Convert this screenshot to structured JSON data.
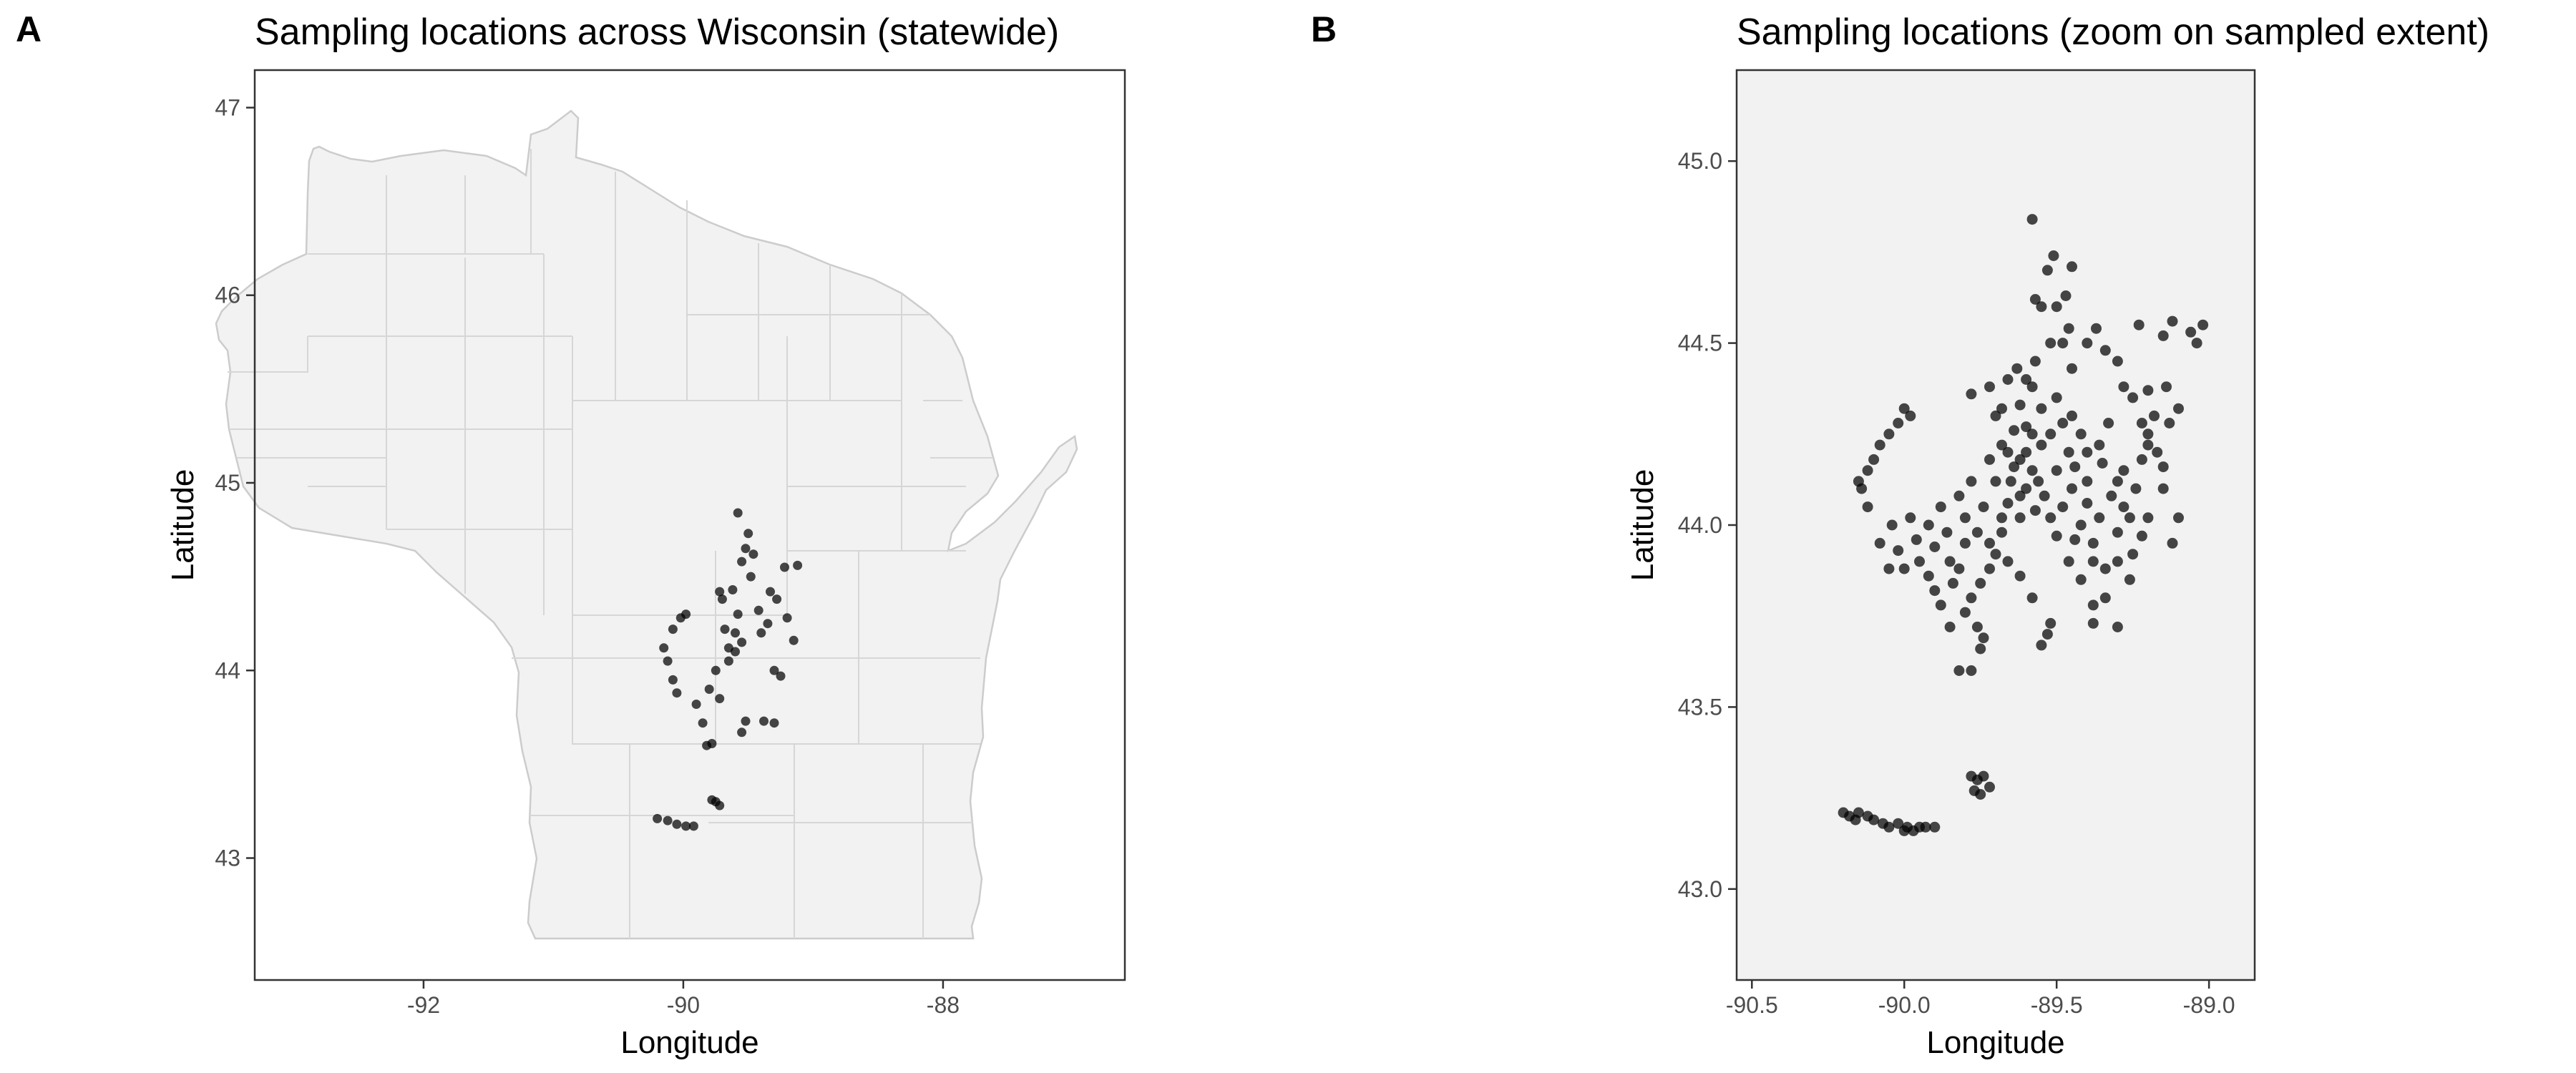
{
  "chart_data": [
    {
      "panel": "A",
      "type": "scatter",
      "title": "Sampling locations across Wisconsin (statewide)",
      "xlabel": "Longitude",
      "ylabel": "Latitude",
      "xlim": [
        -93.3,
        -86.6
      ],
      "ylim": [
        42.35,
        47.2
      ],
      "xticks": [
        -92,
        -90,
        -88
      ],
      "xtick_labels": [
        "-92",
        "-90",
        "-88"
      ],
      "yticks": [
        43,
        44,
        45,
        46,
        47
      ],
      "ytick_labels": [
        "43",
        "44",
        "45",
        "46",
        "47"
      ],
      "basemap": "Wisconsin county boundaries",
      "grid": false,
      "point_color": "#000000",
      "series": [
        {
          "points": [
            [
              -89.58,
              44.84
            ],
            [
              -89.5,
              44.73
            ],
            [
              -89.52,
              44.65
            ],
            [
              -89.46,
              44.62
            ],
            [
              -89.55,
              44.58
            ],
            [
              -89.48,
              44.5
            ],
            [
              -89.33,
              44.42
            ],
            [
              -89.28,
              44.38
            ],
            [
              -89.22,
              44.55
            ],
            [
              -89.12,
              44.56
            ],
            [
              -89.62,
              44.43
            ],
            [
              -89.7,
              44.38
            ],
            [
              -89.72,
              44.42
            ],
            [
              -89.4,
              44.2
            ],
            [
              -89.35,
              44.25
            ],
            [
              -89.2,
              44.28
            ],
            [
              -89.15,
              44.16
            ],
            [
              -89.25,
              43.97
            ],
            [
              -89.3,
              43.72
            ],
            [
              -89.38,
              43.73
            ],
            [
              -89.52,
              43.73
            ],
            [
              -89.55,
              43.67
            ],
            [
              -89.82,
              43.6
            ],
            [
              -89.78,
              43.61
            ],
            [
              -89.85,
              43.72
            ],
            [
              -89.9,
              43.82
            ],
            [
              -90.05,
              43.88
            ],
            [
              -90.08,
              43.95
            ],
            [
              -90.12,
              44.05
            ],
            [
              -90.15,
              44.12
            ],
            [
              -90.08,
              44.22
            ],
            [
              -90.02,
              44.28
            ],
            [
              -89.98,
              44.3
            ],
            [
              -89.68,
              44.22
            ],
            [
              -89.65,
              44.05
            ],
            [
              -89.6,
              44.2
            ],
            [
              -89.6,
              44.1
            ],
            [
              -89.55,
              44.15
            ],
            [
              -89.65,
              44.12
            ],
            [
              -89.75,
              44.0
            ],
            [
              -89.8,
              43.9
            ],
            [
              -89.72,
              43.85
            ],
            [
              -89.58,
              44.3
            ],
            [
              -89.3,
              44.0
            ],
            [
              -89.42,
              44.32
            ],
            [
              -90.2,
              43.21
            ],
            [
              -90.12,
              43.2
            ],
            [
              -90.05,
              43.18
            ],
            [
              -89.98,
              43.17
            ],
            [
              -89.92,
              43.17
            ],
            [
              -89.75,
              43.3
            ],
            [
              -89.72,
              43.28
            ],
            [
              -89.78,
              43.31
            ]
          ]
        }
      ]
    },
    {
      "panel": "B",
      "type": "scatter",
      "title": "Sampling locations (zoom on sampled extent)",
      "xlabel": "Longitude",
      "ylabel": "Latitude",
      "xlim": [
        -90.55,
        -88.85
      ],
      "ylim": [
        42.75,
        45.25
      ],
      "xticks": [
        -90.5,
        -90.0,
        -89.5,
        -89.0
      ],
      "xtick_labels": [
        "-90.5",
        "-90.0",
        "-89.5",
        "-89.0"
      ],
      "yticks": [
        43.0,
        43.5,
        44.0,
        44.5,
        45.0
      ],
      "ytick_labels": [
        "43.0",
        "43.5",
        "44.0",
        "44.5",
        "45.0"
      ],
      "grid": false,
      "point_color": "#000000",
      "series": [
        {
          "points": [
            [
              -89.58,
              44.84
            ],
            [
              -89.51,
              44.74
            ],
            [
              -89.53,
              44.7
            ],
            [
              -89.45,
              44.71
            ],
            [
              -89.47,
              44.63
            ],
            [
              -89.57,
              44.62
            ],
            [
              -89.55,
              44.6
            ],
            [
              -89.5,
              44.6
            ],
            [
              -89.46,
              44.54
            ],
            [
              -89.48,
              44.5
            ],
            [
              -89.52,
              44.5
            ],
            [
              -89.37,
              44.54
            ],
            [
              -89.4,
              44.5
            ],
            [
              -89.34,
              44.48
            ],
            [
              -89.3,
              44.45
            ],
            [
              -89.28,
              44.38
            ],
            [
              -89.25,
              44.35
            ],
            [
              -89.2,
              44.37
            ],
            [
              -89.18,
              44.3
            ],
            [
              -89.22,
              44.28
            ],
            [
              -89.2,
              44.22
            ],
            [
              -89.22,
              44.18
            ],
            [
              -89.12,
              44.56
            ],
            [
              -89.15,
              44.52
            ],
            [
              -89.23,
              44.55
            ],
            [
              -89.63,
              44.43
            ],
            [
              -89.66,
              44.4
            ],
            [
              -89.58,
              44.38
            ],
            [
              -89.72,
              44.38
            ],
            [
              -89.78,
              44.36
            ],
            [
              -89.68,
              44.32
            ],
            [
              -89.7,
              44.3
            ],
            [
              -89.62,
              44.33
            ],
            [
              -89.6,
              44.27
            ],
            [
              -89.55,
              44.32
            ],
            [
              -89.5,
              44.35
            ],
            [
              -89.45,
              44.3
            ],
            [
              -89.42,
              44.25
            ],
            [
              -89.4,
              44.2
            ],
            [
              -89.36,
              44.22
            ],
            [
              -89.33,
              44.28
            ],
            [
              -89.35,
              44.17
            ],
            [
              -89.3,
              44.12
            ],
            [
              -89.4,
              44.12
            ],
            [
              -89.45,
              44.1
            ],
            [
              -89.48,
              44.05
            ],
            [
              -89.42,
              44.0
            ],
            [
              -89.38,
              43.95
            ],
            [
              -89.3,
              43.98
            ],
            [
              -89.28,
              44.05
            ],
            [
              -89.22,
              43.97
            ],
            [
              -89.25,
              43.92
            ],
            [
              -89.2,
              44.02
            ],
            [
              -89.15,
              44.16
            ],
            [
              -89.6,
              44.2
            ],
            [
              -89.58,
              44.15
            ],
            [
              -89.62,
              44.18
            ],
            [
              -89.55,
              44.22
            ],
            [
              -89.6,
              44.1
            ],
            [
              -89.65,
              44.12
            ],
            [
              -89.66,
              44.06
            ],
            [
              -89.62,
              44.02
            ],
            [
              -89.68,
              43.98
            ],
            [
              -89.7,
              43.92
            ],
            [
              -89.72,
              43.88
            ],
            [
              -89.75,
              43.84
            ],
            [
              -89.78,
              43.8
            ],
            [
              -89.8,
              43.76
            ],
            [
              -89.76,
              43.72
            ],
            [
              -89.74,
              43.69
            ],
            [
              -89.75,
              43.66
            ],
            [
              -89.78,
              43.6
            ],
            [
              -89.82,
              43.6
            ],
            [
              -89.85,
              43.72
            ],
            [
              -89.88,
              43.78
            ],
            [
              -89.9,
              43.82
            ],
            [
              -89.92,
              43.86
            ],
            [
              -89.85,
              43.9
            ],
            [
              -89.8,
              43.95
            ],
            [
              -89.95,
              43.9
            ],
            [
              -90.0,
              43.88
            ],
            [
              -90.05,
              43.88
            ],
            [
              -90.08,
              43.95
            ],
            [
              -90.04,
              44.0
            ],
            [
              -89.98,
              44.02
            ],
            [
              -89.92,
              44.0
            ],
            [
              -89.88,
              44.05
            ],
            [
              -89.82,
              44.08
            ],
            [
              -89.78,
              44.12
            ],
            [
              -89.72,
              44.18
            ],
            [
              -89.66,
              44.2
            ],
            [
              -90.12,
              44.05
            ],
            [
              -90.14,
              44.1
            ],
            [
              -90.15,
              44.12
            ],
            [
              -90.12,
              44.15
            ],
            [
              -90.1,
              44.18
            ],
            [
              -90.08,
              44.22
            ],
            [
              -90.05,
              44.25
            ],
            [
              -90.02,
              44.28
            ],
            [
              -89.98,
              44.3
            ],
            [
              -90.0,
              44.32
            ],
            [
              -89.68,
              44.22
            ],
            [
              -89.64,
              44.26
            ],
            [
              -89.56,
              44.12
            ],
            [
              -89.54,
              44.08
            ],
            [
              -89.52,
              44.02
            ],
            [
              -89.5,
              43.97
            ],
            [
              -89.46,
              43.9
            ],
            [
              -89.42,
              43.85
            ],
            [
              -89.38,
              43.78
            ],
            [
              -89.34,
              43.8
            ],
            [
              -89.3,
              43.72
            ],
            [
              -89.38,
              43.73
            ],
            [
              -89.52,
              43.73
            ],
            [
              -89.53,
              43.7
            ],
            [
              -89.55,
              43.67
            ],
            [
              -89.58,
              43.8
            ],
            [
              -89.62,
              43.86
            ],
            [
              -89.66,
              43.9
            ],
            [
              -89.3,
              43.9
            ],
            [
              -89.26,
              43.85
            ],
            [
              -89.12,
              43.95
            ],
            [
              -89.1,
              44.02
            ],
            [
              -89.15,
              44.1
            ],
            [
              -89.28,
              44.15
            ],
            [
              -89.32,
              44.08
            ],
            [
              -89.6,
              44.4
            ],
            [
              -89.57,
              44.45
            ],
            [
              -89.45,
              44.43
            ],
            [
              -89.7,
              44.12
            ],
            [
              -89.74,
              44.05
            ],
            [
              -89.76,
              43.98
            ],
            [
              -89.8,
              44.02
            ],
            [
              -89.86,
              43.98
            ],
            [
              -89.9,
              43.94
            ],
            [
              -89.96,
              43.96
            ],
            [
              -90.02,
              43.93
            ],
            [
              -89.84,
              43.84
            ],
            [
              -89.82,
              43.88
            ],
            [
              -89.5,
              44.15
            ],
            [
              -89.46,
              44.2
            ],
            [
              -89.44,
              44.16
            ],
            [
              -89.52,
              44.25
            ],
            [
              -89.48,
              44.28
            ],
            [
              -89.58,
              44.25
            ],
            [
              -89.64,
              44.16
            ],
            [
              -89.62,
              44.08
            ],
            [
              -89.57,
              44.04
            ],
            [
              -89.68,
              44.02
            ],
            [
              -89.72,
              43.95
            ],
            [
              -89.04,
              44.5
            ],
            [
              -89.02,
              44.55
            ],
            [
              -89.06,
              44.53
            ],
            [
              -89.1,
              44.32
            ],
            [
              -89.13,
              44.28
            ],
            [
              -89.14,
              44.38
            ],
            [
              -89.17,
              44.2
            ],
            [
              -89.2,
              44.25
            ],
            [
              -89.24,
              44.1
            ],
            [
              -89.26,
              44.02
            ],
            [
              -89.34,
              43.88
            ],
            [
              -89.38,
              43.9
            ],
            [
              -89.44,
              43.96
            ],
            [
              -89.4,
              44.06
            ],
            [
              -89.36,
              44.02
            ],
            [
              -90.2,
              43.21
            ],
            [
              -90.18,
              43.2
            ],
            [
              -90.15,
              43.21
            ],
            [
              -90.12,
              43.2
            ],
            [
              -90.1,
              43.19
            ],
            [
              -90.07,
              43.18
            ],
            [
              -90.05,
              43.17
            ],
            [
              -90.02,
              43.18
            ],
            [
              -89.99,
              43.17
            ],
            [
              -89.97,
              43.16
            ],
            [
              -89.95,
              43.17
            ],
            [
              -89.93,
              43.17
            ],
            [
              -89.9,
              43.17
            ],
            [
              -90.16,
              43.19
            ],
            [
              -90.0,
              43.16
            ],
            [
              -89.78,
              43.31
            ],
            [
              -89.76,
              43.3
            ],
            [
              -89.74,
              43.31
            ],
            [
              -89.72,
              43.28
            ],
            [
              -89.75,
              43.26
            ],
            [
              -89.77,
              43.27
            ]
          ]
        }
      ]
    }
  ]
}
